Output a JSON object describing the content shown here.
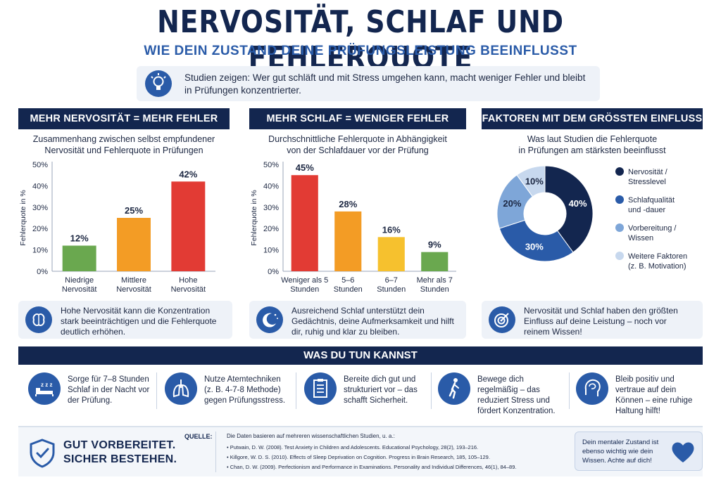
{
  "header": {
    "title": "NERVOSITÄT, SCHLAF UND FEHLERQUOTE",
    "subtitle": "WIE DEIN ZUSTAND DEINE PRÜFUNGSLEISTUNG BEEINFLUSST"
  },
  "intro": {
    "icon": "lightbulb-icon",
    "text": "Studien zeigen: Wer gut schläft und mit Stress umgehen kann, macht weniger Fehler und bleibt in Prüfungen konzentrierter."
  },
  "panels": [
    {
      "heading": "MEHR NERVOSITÄT = MEHR FEHLER",
      "subtitle_line1": "Zusammenhang zwischen selbst empfundener",
      "subtitle_line2": "Nervosität und Fehlerquote in Prüfungen",
      "note_icon": "brain-icon",
      "note": "Hohe Nervosität kann die Konzentration stark beeinträchtigen und die Fehlerquote deutlich erhöhen."
    },
    {
      "heading": "MEHR SCHLAF = WENIGER FEHLER",
      "subtitle_line1": "Durchschnittliche Fehlerquote in Abhängigkeit",
      "subtitle_line2": "von der Schlafdauer vor der Prüfung",
      "note_icon": "moon-icon",
      "note": "Ausreichend Schlaf unterstützt dein Gedächtnis, deine Aufmerksamkeit und hilft dir, ruhig und klar zu bleiben."
    },
    {
      "heading": "FAKTOREN MIT DEM GRÖSSTEN EINFLUSS",
      "subtitle_line1": "Was laut Studien die Fehlerquote",
      "subtitle_line2": "in Prüfungen am stärksten beeinflusst",
      "note_icon": "target-icon",
      "note": "Nervosität und Schlaf haben den größten Einfluss auf deine Leistung – noch vor reinem Wissen!"
    }
  ],
  "chart_data": [
    {
      "type": "bar",
      "categories": [
        "Niedrige Nervosität",
        "Mittlere Nervosität",
        "Hohe Nervosität"
      ],
      "values": [
        12,
        25,
        42
      ],
      "data_labels": [
        "12%",
        "25%",
        "42%"
      ],
      "colors": [
        "#6aa84f",
        "#f39c25",
        "#e23b34"
      ],
      "ylabel": "Fehlerquote in %",
      "ylim": [
        0,
        50
      ],
      "yticks": [
        "0%",
        "10%",
        "20%",
        "30%",
        "40%",
        "50%"
      ],
      "grid": false
    },
    {
      "type": "bar",
      "categories": [
        "Weniger als 5 Stunden",
        "5–6 Stunden",
        "6–7 Stunden",
        "Mehr als 7 Stunden"
      ],
      "values": [
        45,
        28,
        16,
        9
      ],
      "data_labels": [
        "45%",
        "28%",
        "16%",
        "9%"
      ],
      "colors": [
        "#e23b34",
        "#f39c25",
        "#f6c12e",
        "#6aa84f"
      ],
      "ylabel": "Fehlerquote in %",
      "ylim": [
        0,
        50
      ],
      "yticks": [
        "0%",
        "10%",
        "20%",
        "30%",
        "40%",
        "50%"
      ],
      "grid": false
    },
    {
      "type": "pie",
      "donut": true,
      "labels": [
        "Nervosität / Stresslevel",
        "Schlafqualität und -dauer",
        "Vorbereitung / Wissen",
        "Weitere Faktoren (z. B. Motivation)"
      ],
      "legend_lines": [
        [
          "Nervosität /",
          "Stresslevel"
        ],
        [
          "Schlafqualität",
          "und -dauer"
        ],
        [
          "Vorbereitung /",
          "Wissen"
        ],
        [
          "Weitere Faktoren",
          "(z. B. Motivation)"
        ]
      ],
      "values": [
        40,
        30,
        20,
        10
      ],
      "data_labels": [
        "40%",
        "30%",
        "20%",
        "10%"
      ],
      "colors": [
        "#13264f",
        "#2a5ba8",
        "#7ea6d8",
        "#c7d8ee"
      ],
      "legend_position": "right"
    }
  ],
  "actions": {
    "heading": "WAS DU TUN KANNST",
    "tips": [
      {
        "icon": "sleep-bed-icon",
        "text": "Sorge für 7–8 Stunden Schlaf in der Nacht vor der Prüfung."
      },
      {
        "icon": "lungs-icon",
        "text": "Nutze Atemtechniken (z. B. 4-7-8 Methode) gegen Prüfungsstress."
      },
      {
        "icon": "checklist-icon",
        "text": "Bereite dich gut und strukturiert vor – das schafft Sicherheit."
      },
      {
        "icon": "walking-person-icon",
        "text": "Bewege dich regelmäßig – das reduziert Stress und fördert Konzentration."
      },
      {
        "icon": "head-brain-icon",
        "text": "Bleib positiv und vertraue auf dein Können – eine ruhige Haltung hilft!"
      }
    ]
  },
  "footer": {
    "brand_icon": "shield-check-icon",
    "brand_line1": "GUT VORBEREITET.",
    "brand_line2": "SICHER BESTEHEN.",
    "source_label": "QUELLE:",
    "source_intro": "Die Daten basieren auf mehreren wissenschaftlichen Studien, u. a.:",
    "sources": [
      "• Putwain, D. W. (2008). Test Anxiety in Children and Adolescents. Educational Psychology, 28(2), 193–216.",
      "• Killgore, W. D. S. (2010). Effects of Sleep Deprivation on Cognition. Progress in Brain Research, 185, 105–129.",
      "• Chan, D. W. (2009). Perfectionism and Performance in Examinations. Personality and Individual Differences, 46(1), 84–89."
    ],
    "callout_text": "Dein mentaler Zustand ist ebenso wichtig wie dein Wissen. Achte auf dich!",
    "callout_icon": "heart-icon"
  },
  "colors": {
    "navy": "#13264f",
    "accent_blue": "#2a5ba8",
    "panel_bg": "#eef2f8"
  }
}
